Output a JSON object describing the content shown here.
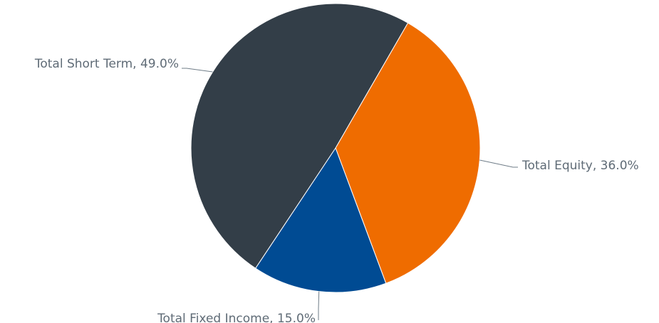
{
  "chart_data": {
    "type": "pie",
    "title": "",
    "slices": [
      {
        "label": "Total Equity",
        "value": 36.0,
        "color": "#ef6c00",
        "display": "Total Equity, 36.0%"
      },
      {
        "label": "Total Fixed Income",
        "value": 15.0,
        "color": "#004b93",
        "display": "Total Fixed Income, 15.0%"
      },
      {
        "label": "Total Short Term",
        "value": 49.0,
        "color": "#333e48",
        "display": "Total Short Term, 49.0%"
      }
    ],
    "start_angle_deg": 30,
    "direction": "clockwise",
    "legend": "none",
    "data_labels": "outside with leader lines"
  }
}
